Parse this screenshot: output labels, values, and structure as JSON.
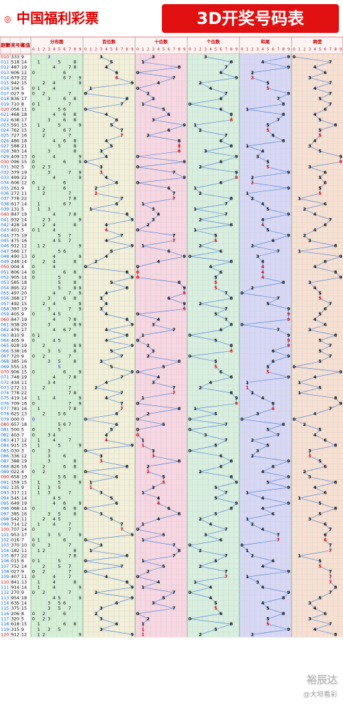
{
  "header": {
    "logo": "中国福利彩票",
    "title": "3D开奖号码表"
  },
  "columns": {
    "period": "期数",
    "draw": "开奖号码",
    "sum": "和值"
  },
  "panels": [
    "分布图",
    "百位数",
    "十位数",
    "个位数",
    "和尾",
    "跨度"
  ],
  "digits": [
    0,
    1,
    2,
    3,
    4,
    5,
    6,
    7,
    8,
    9
  ],
  "rows": [
    [
      "010",
      "333",
      9,
      3,
      3,
      3,
      9,
      0
    ],
    [
      "011",
      "518",
      14,
      5,
      1,
      8,
      4,
      7
    ],
    [
      "012",
      "487",
      19,
      4,
      8,
      7,
      9,
      4
    ],
    [
      "013",
      "606",
      12,
      6,
      0,
      6,
      2,
      6
    ],
    [
      "014",
      "679",
      22,
      6,
      7,
      9,
      2,
      3
    ],
    [
      "015",
      "942",
      15,
      9,
      4,
      2,
      5,
      7
    ],
    [
      "016",
      "104",
      5,
      1,
      0,
      4,
      5,
      4
    ],
    [
      "017",
      "027",
      9,
      0,
      2,
      7,
      9,
      7
    ],
    [
      "018",
      "836",
      17,
      8,
      3,
      6,
      7,
      5
    ],
    [
      "019",
      "710",
      8,
      7,
      1,
      0,
      8,
      7
    ],
    [
      "020",
      "056",
      11,
      0,
      5,
      6,
      1,
      6
    ],
    [
      "021",
      "468",
      18,
      4,
      6,
      8,
      8,
      4
    ],
    [
      "022",
      "638",
      17,
      6,
      3,
      8,
      7,
      5
    ],
    [
      "023",
      "591",
      15,
      5,
      9,
      1,
      5,
      8
    ],
    [
      "024",
      "762",
      15,
      7,
      6,
      2,
      5,
      5
    ],
    [
      "025",
      "727",
      16,
      7,
      2,
      7,
      6,
      5
    ],
    [
      "026",
      "486",
      18,
      4,
      8,
      6,
      8,
      4
    ],
    [
      "027",
      "588",
      21,
      5,
      8,
      8,
      1,
      3
    ],
    [
      "028",
      "383",
      14,
      3,
      8,
      3,
      4,
      5
    ],
    [
      "029",
      "409",
      13,
      4,
      0,
      9,
      3,
      9
    ],
    [
      "030",
      "096",
      15,
      0,
      9,
      6,
      5,
      9
    ],
    [
      "031",
      "302",
      5,
      3,
      0,
      2,
      5,
      3
    ],
    [
      "032",
      "379",
      19,
      3,
      7,
      9,
      9,
      6
    ],
    [
      "033",
      "499",
      22,
      4,
      9,
      9,
      2,
      5
    ],
    [
      "034",
      "606",
      12,
      6,
      0,
      6,
      2,
      6
    ],
    [
      "035",
      "261",
      9,
      2,
      6,
      1,
      9,
      5
    ],
    [
      "036",
      "272",
      11,
      2,
      7,
      2,
      1,
      5
    ],
    [
      "037",
      "778",
      22,
      7,
      7,
      8,
      2,
      1
    ],
    [
      "038",
      "617",
      14,
      6,
      1,
      7,
      4,
      6
    ],
    [
      "039",
      "131",
      5,
      1,
      3,
      1,
      5,
      2
    ],
    [
      "040",
      "847",
      19,
      8,
      4,
      7,
      9,
      4
    ],
    [
      "041",
      "932",
      14,
      9,
      3,
      2,
      4,
      7
    ],
    [
      "042",
      "428",
      14,
      4,
      2,
      8,
      4,
      6
    ],
    [
      "043",
      "401",
      5,
      4,
      0,
      1,
      5,
      4
    ],
    [
      "044",
      "775",
      19,
      7,
      7,
      5,
      9,
      2
    ],
    [
      "045",
      "475",
      16,
      4,
      7,
      5,
      6,
      3
    ],
    [
      "046",
      "912",
      12,
      9,
      1,
      2,
      2,
      8
    ],
    [
      "047",
      "566",
      17,
      5,
      6,
      6,
      7,
      1
    ],
    [
      "048",
      "490",
      13,
      4,
      9,
      0,
      3,
      9
    ],
    [
      "049",
      "248",
      14,
      2,
      4,
      8,
      4,
      6
    ],
    [
      "050",
      "004",
      4,
      0,
      0,
      4,
      4,
      4
    ],
    [
      "051",
      "806",
      14,
      8,
      0,
      6,
      4,
      8
    ],
    [
      "052",
      "905",
      14,
      9,
      0,
      5,
      4,
      9
    ],
    [
      "053",
      "585",
      18,
      5,
      8,
      5,
      8,
      3
    ],
    [
      "054",
      "895",
      22,
      8,
      9,
      5,
      2,
      4
    ],
    [
      "055",
      "497",
      20,
      4,
      9,
      7,
      0,
      5
    ],
    [
      "056",
      "368",
      17,
      3,
      6,
      8,
      7,
      5
    ],
    [
      "057",
      "492",
      15,
      4,
      9,
      2,
      5,
      7
    ],
    [
      "058",
      "397",
      19,
      3,
      9,
      7,
      9,
      6
    ],
    [
      "059",
      "405",
      9,
      4,
      0,
      5,
      9,
      5
    ],
    [
      "060",
      "847",
      19,
      8,
      4,
      7,
      9,
      4
    ],
    [
      "061",
      "938",
      20,
      9,
      3,
      8,
      0,
      6
    ],
    [
      "062",
      "476",
      17,
      4,
      7,
      6,
      7,
      3
    ],
    [
      "063",
      "810",
      9,
      8,
      1,
      0,
      9,
      8
    ],
    [
      "064",
      "405",
      9,
      4,
      0,
      5,
      9,
      5
    ],
    [
      "065",
      "928",
      19,
      9,
      2,
      8,
      9,
      7
    ],
    [
      "066",
      "538",
      16,
      5,
      3,
      8,
      6,
      5
    ],
    [
      "067",
      "720",
      9,
      7,
      2,
      0,
      9,
      7
    ],
    [
      "068",
      "385",
      16,
      3,
      8,
      5,
      6,
      5
    ],
    [
      "069",
      "555",
      15,
      5,
      5,
      5,
      5,
      0
    ],
    [
      "070",
      "906",
      15,
      9,
      0,
      6,
      5,
      9
    ],
    [
      "071",
      "748",
      19,
      7,
      4,
      8,
      9,
      4
    ],
    [
      "072",
      "434",
      11,
      4,
      3,
      4,
      1,
      1
    ],
    [
      "073",
      "272",
      11,
      2,
      7,
      2,
      1,
      5
    ],
    [
      "074",
      "778",
      22,
      7,
      7,
      8,
      2,
      1
    ],
    [
      "075",
      "419",
      14,
      4,
      1,
      9,
      4,
      8
    ],
    [
      "076",
      "709",
      16,
      7,
      0,
      9,
      6,
      9
    ],
    [
      "077",
      "781",
      16,
      7,
      8,
      1,
      6,
      7
    ],
    [
      "078",
      "625",
      13,
      6,
      2,
      5,
      3,
      4
    ],
    [
      "079",
      "000",
      0,
      0,
      0,
      0,
      0,
      0
    ],
    [
      "080",
      "657",
      18,
      6,
      5,
      7,
      8,
      2
    ],
    [
      "081",
      "500",
      5,
      5,
      0,
      0,
      5,
      5
    ],
    [
      "082",
      "403",
      7,
      4,
      0,
      3,
      7,
      4
    ],
    [
      "083",
      "417",
      12,
      4,
      1,
      7,
      2,
      6
    ],
    [
      "084",
      "915",
      15,
      9,
      1,
      5,
      5,
      8
    ],
    [
      "085",
      "030",
      3,
      0,
      3,
      0,
      3,
      3
    ],
    [
      "086",
      "336",
      12,
      3,
      3,
      6,
      2,
      3
    ],
    [
      "087",
      "388",
      19,
      3,
      8,
      8,
      9,
      5
    ],
    [
      "088",
      "826",
      16,
      8,
      2,
      6,
      6,
      6
    ],
    [
      "089",
      "022",
      4,
      0,
      2,
      2,
      4,
      2
    ],
    [
      "090",
      "658",
      19,
      6,
      5,
      8,
      9,
      3
    ],
    [
      "091",
      "159",
      15,
      1,
      5,
      9,
      5,
      8
    ],
    [
      "092",
      "135",
      9,
      1,
      3,
      5,
      9,
      4
    ],
    [
      "093",
      "317",
      11,
      3,
      1,
      7,
      1,
      6
    ],
    [
      "094",
      "545",
      14,
      5,
      4,
      5,
      4,
      1
    ],
    [
      "095",
      "649",
      19,
      6,
      4,
      9,
      9,
      5
    ],
    [
      "096",
      "068",
      14,
      0,
      6,
      8,
      4,
      8
    ],
    [
      "097",
      "385",
      16,
      3,
      8,
      5,
      6,
      5
    ],
    [
      "098",
      "542",
      11,
      5,
      4,
      2,
      1,
      3
    ],
    [
      "099",
      "714",
      12,
      7,
      1,
      4,
      2,
      6
    ],
    [
      "100",
      "707",
      14,
      7,
      0,
      7,
      4,
      7
    ],
    [
      "101",
      "953",
      17,
      9,
      5,
      3,
      7,
      6
    ],
    [
      "102",
      "016",
      7,
      0,
      1,
      6,
      7,
      6
    ],
    [
      "103",
      "370",
      10,
      3,
      7,
      0,
      0,
      7
    ],
    [
      "104",
      "182",
      11,
      1,
      8,
      2,
      1,
      7
    ],
    [
      "105",
      "877",
      22,
      8,
      7,
      7,
      2,
      1
    ],
    [
      "106",
      "015",
      6,
      0,
      1,
      5,
      6,
      5
    ],
    [
      "107",
      "752",
      14,
      7,
      5,
      2,
      4,
      5
    ],
    [
      "108",
      "027",
      9,
      0,
      2,
      7,
      9,
      7
    ],
    [
      "109",
      "407",
      11,
      4,
      0,
      7,
      1,
      7
    ],
    [
      "110",
      "841",
      13,
      8,
      4,
      1,
      3,
      7
    ],
    [
      "111",
      "914",
      14,
      9,
      1,
      4,
      4,
      8
    ],
    [
      "112",
      "270",
      9,
      2,
      7,
      0,
      9,
      7
    ],
    [
      "113",
      "954",
      18,
      9,
      5,
      4,
      8,
      5
    ],
    [
      "114",
      "635",
      14,
      6,
      3,
      5,
      4,
      3
    ],
    [
      "115",
      "375",
      15,
      3,
      7,
      5,
      5,
      4
    ],
    [
      "116",
      "206",
      8,
      2,
      0,
      6,
      8,
      6
    ],
    [
      "117",
      "320",
      5,
      3,
      2,
      0,
      5,
      3
    ],
    [
      "118",
      "618",
      15,
      6,
      1,
      8,
      5,
      7
    ],
    [
      "119",
      "315",
      9,
      3,
      1,
      5,
      9,
      4
    ],
    [
      "120",
      "912",
      12,
      9,
      1,
      2,
      2,
      8
    ]
  ],
  "watermark": [
    "裕辰达",
    "@大坝看彩"
  ]
}
